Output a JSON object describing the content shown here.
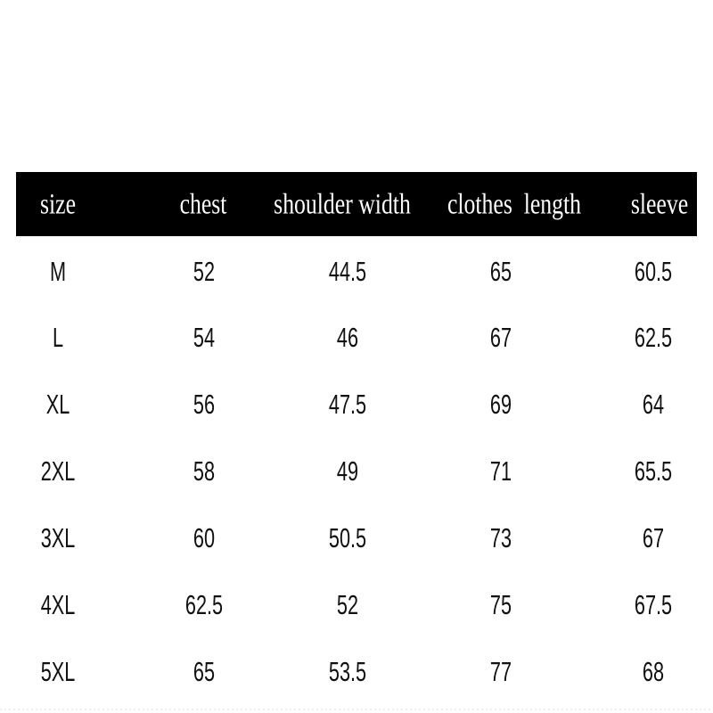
{
  "table": {
    "header": [
      "size",
      "chest",
      "shoulder width",
      "clothes  length",
      "sleeve"
    ],
    "rows": [
      [
        "M",
        52,
        44.5,
        65,
        60.5
      ],
      [
        "L",
        54,
        46,
        67,
        62.5
      ],
      [
        "XL",
        56,
        47.5,
        69,
        64
      ],
      [
        "2XL",
        58,
        49,
        71,
        65.5
      ],
      [
        "3XL",
        60,
        50.5,
        73,
        67
      ],
      [
        "4XL",
        62.5,
        52,
        75,
        67.5
      ],
      [
        "5XL",
        65,
        53.5,
        77,
        68
      ]
    ]
  }
}
